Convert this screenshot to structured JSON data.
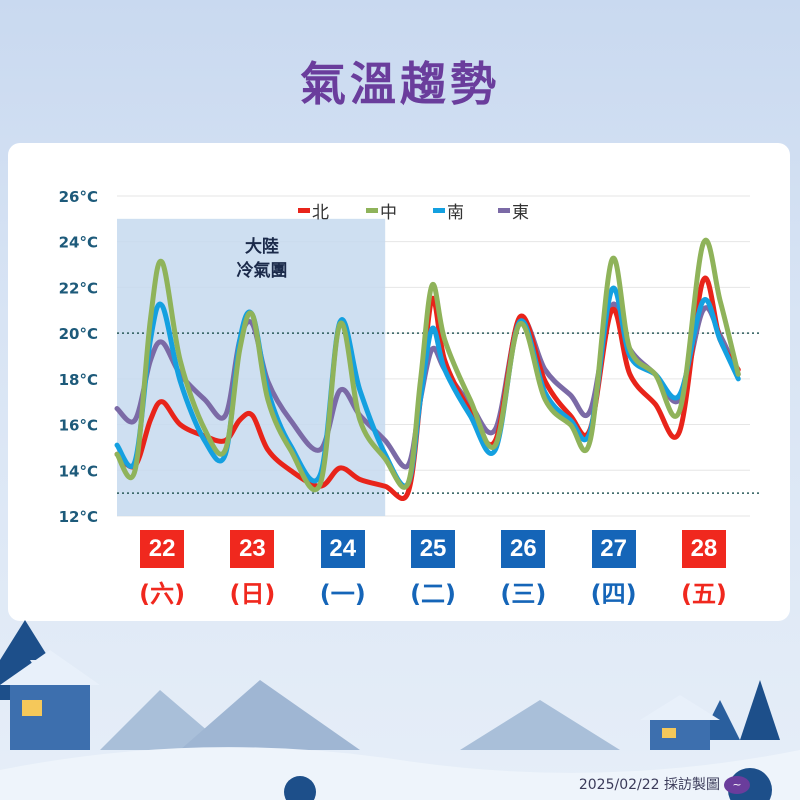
{
  "title": "氣溫趨勢",
  "footer": {
    "date_credit": "2025/02/22 採訪製圖",
    "logo_icon": "cna-wave-logo"
  },
  "colors": {
    "title": "#6a3d9c",
    "north": "#e8241a",
    "central": "#8fb35a",
    "south": "#14a0e0",
    "east": "#7b6aa6",
    "weekend": "#f0281e",
    "weekday": "#1565b8",
    "shade": "#c6d9ee"
  },
  "days": [
    {
      "num": "22",
      "weekday": "(六)",
      "weekend": true
    },
    {
      "num": "23",
      "weekday": "(日)",
      "weekend": true
    },
    {
      "num": "24",
      "weekday": "(一)",
      "weekend": false
    },
    {
      "num": "25",
      "weekday": "(二)",
      "weekend": false
    },
    {
      "num": "26",
      "weekday": "(三)",
      "weekend": false
    },
    {
      "num": "27",
      "weekday": "(四)",
      "weekend": false
    },
    {
      "num": "28",
      "weekday": "(五)",
      "weekend": true
    }
  ],
  "chart_data": {
    "type": "line",
    "title": "",
    "xlabel": "",
    "ylabel": "",
    "xlim": [
      22,
      29
    ],
    "ylim": [
      12,
      26
    ],
    "yticks": [
      12,
      14,
      16,
      18,
      20,
      22,
      24,
      26
    ],
    "ytick_labels": [
      "12°C",
      "14°C",
      "16°C",
      "18°C",
      "20°C",
      "22°C",
      "24°C",
      "26°C"
    ],
    "reference_lines": [
      20,
      13
    ],
    "grid": true,
    "legend_position": "top",
    "annotation": {
      "text_line1": "大陸",
      "text_line2": "冷氣團",
      "x_range": [
        22,
        24.97
      ],
      "y_top": 25
    },
    "x": [
      22.0,
      22.2,
      22.37,
      22.5,
      22.7,
      22.97,
      23.2,
      23.36,
      23.5,
      23.67,
      23.92,
      24.25,
      24.47,
      24.69,
      24.97,
      25.22,
      25.36,
      25.49,
      25.63,
      25.91,
      26.19,
      26.46,
      26.74,
      27.02,
      27.24,
      27.48,
      27.68,
      27.96,
      28.23,
      28.49,
      28.68,
      28.88
    ],
    "series": [
      {
        "name": "北",
        "color": "#e8241a",
        "values": [
          14.7,
          14.2,
          16.2,
          17.0,
          16.0,
          15.5,
          15.3,
          16.2,
          16.4,
          14.9,
          14.0,
          13.3,
          14.1,
          13.6,
          13.3,
          13.0,
          17.1,
          21.5,
          18.8,
          16.6,
          15.3,
          20.7,
          17.9,
          16.4,
          15.8,
          21.0,
          18.2,
          16.9,
          15.7,
          22.3,
          19.7,
          18.4
        ]
      },
      {
        "name": "中",
        "color": "#8fb35a",
        "values": [
          14.7,
          14.0,
          20.6,
          23.1,
          18.8,
          15.8,
          14.9,
          19.3,
          20.8,
          17.1,
          14.9,
          13.4,
          20.4,
          16.2,
          14.5,
          13.4,
          17.9,
          22.1,
          19.7,
          17.1,
          15.1,
          20.4,
          17.1,
          16.0,
          15.3,
          23.2,
          19.3,
          18.2,
          16.6,
          23.9,
          21.4,
          18.2
        ]
      },
      {
        "name": "南",
        "color": "#14a0e0",
        "values": [
          15.1,
          14.4,
          19.7,
          21.2,
          17.9,
          15.3,
          14.7,
          19.7,
          20.8,
          17.5,
          15.1,
          13.8,
          20.5,
          17.5,
          14.7,
          13.4,
          17.1,
          20.2,
          18.4,
          16.4,
          14.9,
          20.5,
          17.4,
          16.2,
          15.7,
          21.9,
          19.0,
          18.2,
          17.3,
          21.4,
          19.7,
          18.0
        ]
      },
      {
        "name": "東",
        "color": "#7b6aa6",
        "values": [
          16.7,
          16.2,
          18.8,
          19.6,
          18.2,
          17.1,
          16.4,
          19.7,
          20.4,
          17.9,
          16.2,
          14.9,
          17.5,
          16.4,
          15.3,
          14.2,
          17.1,
          19.3,
          18.4,
          16.9,
          15.8,
          20.6,
          18.4,
          17.3,
          16.6,
          21.2,
          19.3,
          18.2,
          17.1,
          21.0,
          19.9,
          18.2
        ]
      }
    ]
  }
}
